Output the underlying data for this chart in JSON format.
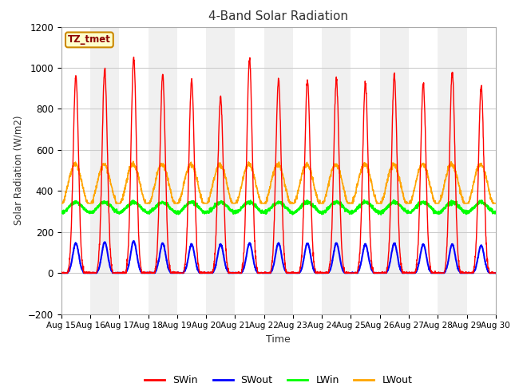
{
  "title": "4-Band Solar Radiation",
  "xlabel": "Time",
  "ylabel": "Solar Radiation (W/m2)",
  "ylim": [
    -200,
    1200
  ],
  "yticks": [
    -200,
    0,
    200,
    400,
    600,
    800,
    1000,
    1200
  ],
  "x_tick_labels": [
    "Aug 15",
    "Aug 16",
    "Aug 17",
    "Aug 18",
    "Aug 19",
    "Aug 20",
    "Aug 21",
    "Aug 22",
    "Aug 23",
    "Aug 24",
    "Aug 25",
    "Aug 26",
    "Aug 27",
    "Aug 28",
    "Aug 29",
    "Aug 30"
  ],
  "annotation_text": "TZ_tmet",
  "annotation_bg": "#FFFFCC",
  "annotation_border": "#CC8800",
  "fig_bg": "#FFFFFF",
  "band_light": "#F0F0F0",
  "band_dark": "#DCDCDC",
  "grid_color": "#E0E0E0",
  "n_days": 15,
  "SWin_peaks": [
    960,
    990,
    1050,
    960,
    940,
    860,
    1045,
    940,
    940,
    940,
    930,
    960,
    920,
    980,
    910
  ],
  "SWout_peaks": [
    145,
    150,
    155,
    145,
    140,
    140,
    145,
    145,
    145,
    145,
    140,
    145,
    140,
    140,
    135
  ],
  "LWin_base": 320,
  "LWin_amp": 25,
  "LWout_base": 430,
  "LWout_amp": 100,
  "SWin_color": "red",
  "SWout_color": "blue",
  "LWin_color": "lime",
  "LWout_color": "orange",
  "legend_labels": [
    "SWin",
    "SWout",
    "LWin",
    "LWout"
  ],
  "legend_colors": [
    "red",
    "blue",
    "lime",
    "orange"
  ]
}
